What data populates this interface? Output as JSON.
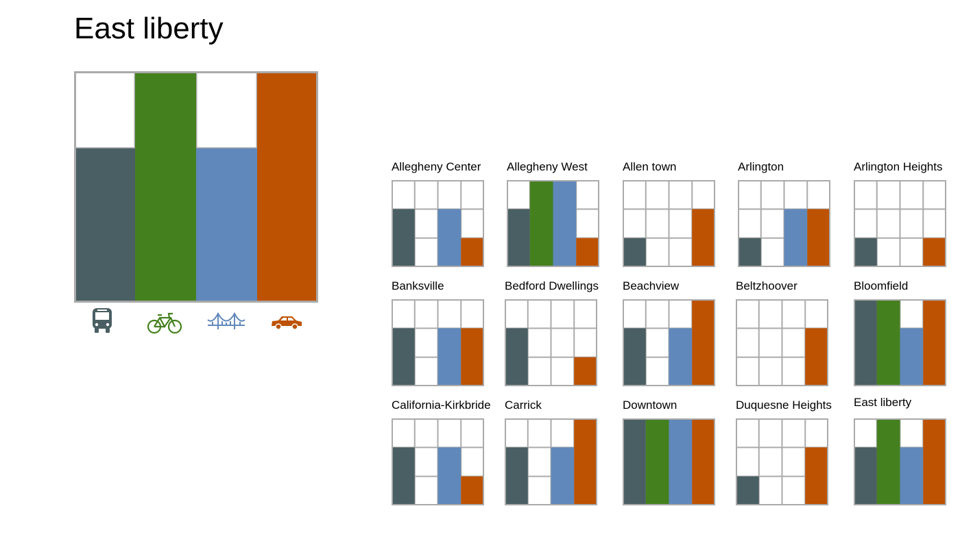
{
  "page": {
    "title": "East liberty"
  },
  "colors": {
    "bus": "#4a5f63",
    "bike": "#45801f",
    "bridge": "#6088bb",
    "car": "#bd5202",
    "grid": "#aaaaaa",
    "empty": "#ffffff"
  },
  "icons": {
    "bus": "bus-icon",
    "bike": "bicycle-icon",
    "bridge": "bridge-icon",
    "car": "car-icon"
  },
  "chart_data": {
    "type": "bar",
    "description_levels": 3,
    "modes": [
      "bus",
      "bike",
      "bridge",
      "car"
    ],
    "main": {
      "title": "East liberty",
      "values": [
        2,
        3,
        2,
        3
      ]
    },
    "small_multiples": [
      {
        "title": "Allegheny Center",
        "values": [
          2,
          0,
          2,
          1
        ]
      },
      {
        "title": "Allegheny West",
        "values": [
          2,
          3,
          3,
          1
        ]
      },
      {
        "title": "Allen town",
        "values": [
          1,
          0,
          0,
          2
        ]
      },
      {
        "title": "Arlington",
        "values": [
          1,
          0,
          2,
          2
        ]
      },
      {
        "title": "Arlington Heights",
        "values": [
          1,
          0,
          0,
          1
        ]
      },
      {
        "title": "Banksville",
        "values": [
          2,
          0,
          2,
          2
        ]
      },
      {
        "title": "Bedford Dwellings",
        "values": [
          2,
          0,
          0,
          1
        ]
      },
      {
        "title": "Beachview",
        "values": [
          2,
          0,
          2,
          3
        ]
      },
      {
        "title": "Beltzhoover",
        "values": [
          0,
          0,
          0,
          2
        ]
      },
      {
        "title": "Bloomfield",
        "values": [
          3,
          3,
          2,
          3
        ]
      },
      {
        "title": "California-Kirkbride",
        "values": [
          2,
          0,
          2,
          1
        ]
      },
      {
        "title": "Carrick",
        "values": [
          2,
          0,
          2,
          3
        ]
      },
      {
        "title": "Downtown",
        "values": [
          3,
          3,
          3,
          3
        ]
      },
      {
        "title": "Duquesne Heights",
        "values": [
          1,
          0,
          0,
          2
        ]
      },
      {
        "title": "East liberty",
        "values": [
          2,
          3,
          2,
          3
        ]
      }
    ]
  }
}
